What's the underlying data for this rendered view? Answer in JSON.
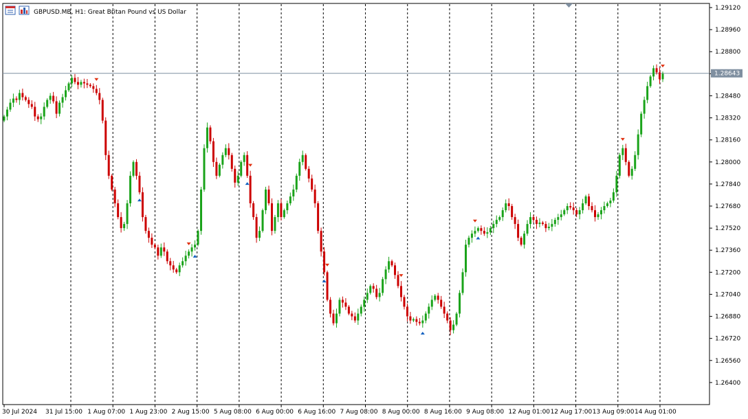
{
  "header": {
    "symbol_info": "GBPUSD.MB, H1:  Great Britan Pound vs US Dollar",
    "icons": [
      "price-table-icon",
      "bar-chart-icon"
    ]
  },
  "colors": {
    "bull": "#1aa31a",
    "bear": "#cc0000",
    "grid": "#000000",
    "current_price_line": "#7f8fa0",
    "current_price_label_bg": "#7f8fa0",
    "arrow_up": "#1060c0",
    "arrow_down": "#e03010"
  },
  "current_price": {
    "value": 1.28643,
    "label": "1.28643"
  },
  "chart_data": {
    "type": "candlestick",
    "symbol": "GBPUSD.MB",
    "timeframe": "H1",
    "ylim": [
      1.2624,
      1.2915
    ],
    "y_ticks": [
      "1.29120",
      "1.28960",
      "1.28800",
      "1.28640",
      "1.28480",
      "1.28320",
      "1.28160",
      "1.28000",
      "1.27840",
      "1.27680",
      "1.27520",
      "1.27360",
      "1.27200",
      "1.27040",
      "1.26880",
      "1.26720",
      "1.26560",
      "1.26400"
    ],
    "x_labels": [
      "30 Jul 2024",
      "31 Jul 15:00",
      "1 Aug 07:00",
      "1 Aug 23:00",
      "2 Aug 15:00",
      "5 Aug 08:00",
      "6 Aug 00:00",
      "6 Aug 16:00",
      "7 Aug 08:00",
      "8 Aug 00:00",
      "8 Aug 16:00",
      "9 Aug 08:00",
      "12 Aug 01:00",
      "12 Aug 17:00",
      "13 Aug 09:00",
      "14 Aug 01:00"
    ],
    "closes": [
      1.2833,
      1.2838,
      1.2843,
      1.2846,
      1.2845,
      1.285,
      1.2847,
      1.2845,
      1.2842,
      1.284,
      1.2833,
      1.2831,
      1.2833,
      1.284,
      1.2845,
      1.2848,
      1.2844,
      1.2835,
      1.2843,
      1.2847,
      1.2852,
      1.2857,
      1.2861,
      1.2858,
      1.2856,
      1.2858,
      1.2857,
      1.2856,
      1.2855,
      1.2853,
      1.285,
      1.2845,
      1.283,
      1.2805,
      1.279,
      1.278,
      1.277,
      1.276,
      1.2752,
      1.2755,
      1.277,
      1.279,
      1.28,
      1.279,
      1.2778,
      1.276,
      1.275,
      1.2745,
      1.274,
      1.2738,
      1.2732,
      1.2738,
      1.2735,
      1.2728,
      1.2725,
      1.2722,
      1.272,
      1.2725,
      1.2728,
      1.2732,
      1.2735,
      1.2738,
      1.274,
      1.275,
      1.278,
      1.281,
      1.2825,
      1.2815,
      1.28,
      1.279,
      1.2798,
      1.2805,
      1.281,
      1.2805,
      1.2795,
      1.2785,
      1.279,
      1.28,
      1.2805,
      1.279,
      1.277,
      1.276,
      1.2745,
      1.275,
      1.2765,
      1.278,
      1.277,
      1.275,
      1.276,
      1.277,
      1.276,
      1.2765,
      1.277,
      1.2775,
      1.278,
      1.279,
      1.28,
      1.2805,
      1.2795,
      1.2788,
      1.278,
      1.277,
      1.275,
      1.2735,
      1.272,
      1.27,
      1.269,
      1.2683,
      1.269,
      1.27,
      1.2698,
      1.2695,
      1.269,
      1.2688,
      1.2685,
      1.269,
      1.2695,
      1.27,
      1.2705,
      1.271,
      1.2708,
      1.2702,
      1.2705,
      1.2715,
      1.2722,
      1.2728,
      1.2725,
      1.2718,
      1.271,
      1.2702,
      1.2695,
      1.2688,
      1.2685,
      1.2686,
      1.2684,
      1.2683,
      1.2685,
      1.269,
      1.2695,
      1.27,
      1.2703,
      1.27,
      1.2695,
      1.269,
      1.2685,
      1.2678,
      1.2682,
      1.269,
      1.2705,
      1.272,
      1.274,
      1.2745,
      1.2748,
      1.275,
      1.2752,
      1.275,
      1.2748,
      1.2749,
      1.2752,
      1.2755,
      1.2758,
      1.276,
      1.2765,
      1.277,
      1.2768,
      1.276,
      1.2755,
      1.2745,
      1.274,
      1.2748,
      1.2755,
      1.276,
      1.2758,
      1.2755,
      1.2756,
      1.2755,
      1.2752,
      1.2753,
      1.2755,
      1.2758,
      1.276,
      1.2762,
      1.2765,
      1.2768,
      1.2767,
      1.2765,
      1.2762,
      1.2765,
      1.277,
      1.2775,
      1.2768,
      1.2765,
      1.276,
      1.2762,
      1.2765,
      1.2768,
      1.277,
      1.2772,
      1.2778,
      1.279,
      1.2805,
      1.281,
      1.28,
      1.279,
      1.2795,
      1.2805,
      1.282,
      1.2835,
      1.2845,
      1.2855,
      1.2862,
      1.2868,
      1.2865,
      1.286,
      1.2864
    ]
  }
}
